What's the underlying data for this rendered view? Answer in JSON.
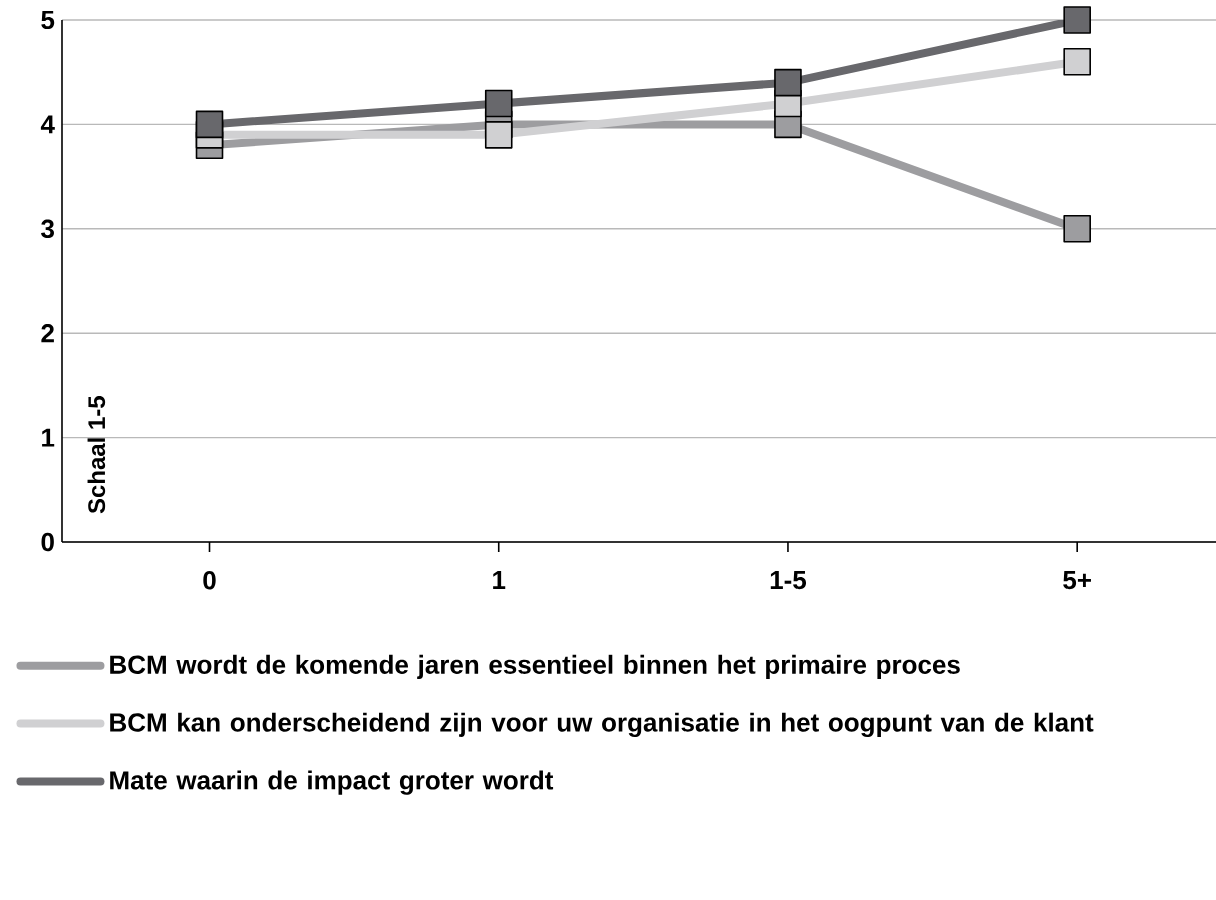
{
  "chart_data": {
    "type": "line",
    "ylabel": "Schaal 1-5",
    "categories": [
      "0",
      "1",
      "1-5",
      "5+"
    ],
    "ylim": [
      0,
      5
    ],
    "yticks": [
      0,
      1,
      2,
      3,
      4,
      5
    ],
    "grid": "y",
    "legend": "bottom",
    "marker": "square",
    "line_style": "solid",
    "series": [
      {
        "name": "BCM wordt de komende jaren essentieel binnen het primaire proces",
        "color": "#9d9da0",
        "values": [
          3.8,
          4.0,
          4.0,
          3.0
        ]
      },
      {
        "name": "BCM kan onderscheidend zijn voor uw organisatie in het oogpunt van de klant",
        "color": "#d0d0d2",
        "values": [
          3.9,
          3.9,
          4.2,
          4.6
        ]
      },
      {
        "name": "Mate waarin de impact groter wordt",
        "color": "#68686c",
        "values": [
          4.0,
          4.2,
          4.4,
          5.0
        ]
      }
    ]
  }
}
